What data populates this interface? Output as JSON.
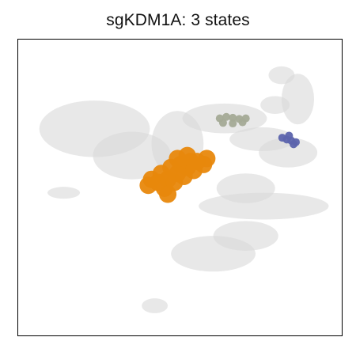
{
  "title": "sgKDM1A: 3 states",
  "chart_data": {
    "type": "scatter",
    "title": "sgKDM1A: 3 states",
    "xlabel": "",
    "ylabel": "",
    "grid": false,
    "legend": "none",
    "axes_ticks": false,
    "background": {
      "name": "",
      "color": "#d9d9d9",
      "alpha": 0.6,
      "regions": [
        {
          "cx": 0.235,
          "cy": 0.7,
          "rx": 0.17,
          "ry": 0.095
        },
        {
          "cx": 0.35,
          "cy": 0.61,
          "rx": 0.12,
          "ry": 0.08
        },
        {
          "cx": 0.49,
          "cy": 0.65,
          "rx": 0.08,
          "ry": 0.11
        },
        {
          "cx": 0.6,
          "cy": 0.28,
          "rx": 0.13,
          "ry": 0.06
        },
        {
          "cx": 0.7,
          "cy": 0.34,
          "rx": 0.1,
          "ry": 0.05
        },
        {
          "cx": 0.635,
          "cy": 0.735,
          "rx": 0.13,
          "ry": 0.05
        },
        {
          "cx": 0.75,
          "cy": 0.665,
          "rx": 0.1,
          "ry": 0.04
        },
        {
          "cx": 0.83,
          "cy": 0.62,
          "rx": 0.09,
          "ry": 0.05
        },
        {
          "cx": 0.86,
          "cy": 0.8,
          "rx": 0.05,
          "ry": 0.085
        },
        {
          "cx": 0.755,
          "cy": 0.44,
          "rx": 0.2,
          "ry": 0.045
        },
        {
          "cx": 0.7,
          "cy": 0.5,
          "rx": 0.09,
          "ry": 0.05
        },
        {
          "cx": 0.81,
          "cy": 0.88,
          "rx": 0.04,
          "ry": 0.03
        },
        {
          "cx": 0.79,
          "cy": 0.78,
          "rx": 0.045,
          "ry": 0.03
        },
        {
          "cx": 0.14,
          "cy": 0.485,
          "rx": 0.05,
          "ry": 0.02
        },
        {
          "cx": 0.42,
          "cy": 0.105,
          "rx": 0.04,
          "ry": 0.025
        }
      ]
    },
    "series": [
      {
        "name": "",
        "color": "#e8880c",
        "points": [
          {
            "x": 0.4,
            "y": 0.51
          },
          {
            "x": 0.43,
            "y": 0.52
          },
          {
            "x": 0.46,
            "y": 0.53
          },
          {
            "x": 0.49,
            "y": 0.55
          },
          {
            "x": 0.52,
            "y": 0.57
          },
          {
            "x": 0.55,
            "y": 0.59
          },
          {
            "x": 0.58,
            "y": 0.6
          },
          {
            "x": 0.41,
            "y": 0.53
          },
          {
            "x": 0.44,
            "y": 0.55
          },
          {
            "x": 0.47,
            "y": 0.57
          },
          {
            "x": 0.5,
            "y": 0.58
          },
          {
            "x": 0.53,
            "y": 0.59
          },
          {
            "x": 0.45,
            "y": 0.5
          },
          {
            "x": 0.48,
            "y": 0.52
          },
          {
            "x": 0.51,
            "y": 0.54
          },
          {
            "x": 0.54,
            "y": 0.56
          },
          {
            "x": 0.57,
            "y": 0.58
          },
          {
            "x": 0.49,
            "y": 0.6
          },
          {
            "x": 0.52,
            "y": 0.61
          },
          {
            "x": 0.46,
            "y": 0.48
          }
        ]
      },
      {
        "name": "",
        "color": "#a4aa96",
        "points": [
          {
            "x": 0.62,
            "y": 0.735
          },
          {
            "x": 0.64,
            "y": 0.74
          },
          {
            "x": 0.66,
            "y": 0.737
          },
          {
            "x": 0.68,
            "y": 0.733
          },
          {
            "x": 0.7,
            "y": 0.735
          },
          {
            "x": 0.63,
            "y": 0.72
          },
          {
            "x": 0.66,
            "y": 0.718
          },
          {
            "x": 0.69,
            "y": 0.722
          }
        ]
      },
      {
        "name": "",
        "color": "#5c64ad",
        "points": [
          {
            "x": 0.812,
            "y": 0.67
          },
          {
            "x": 0.826,
            "y": 0.664
          },
          {
            "x": 0.84,
            "y": 0.66
          },
          {
            "x": 0.854,
            "y": 0.655
          },
          {
            "x": 0.833,
            "y": 0.677
          },
          {
            "x": 0.847,
            "y": 0.648
          }
        ]
      }
    ]
  }
}
